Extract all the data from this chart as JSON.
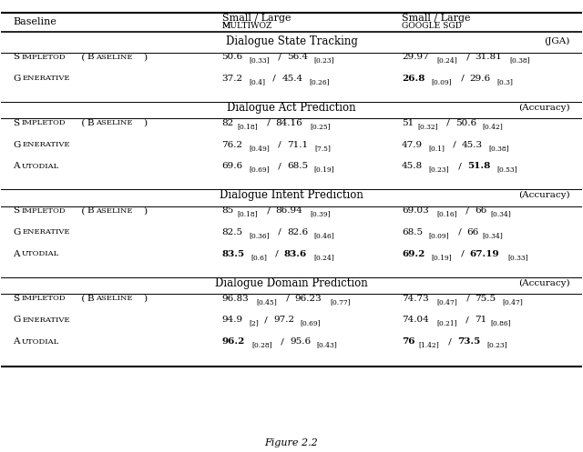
{
  "figsize": [
    6.4,
    4.97
  ],
  "dpi": 100,
  "bg_color": "#ffffff",
  "header": {
    "col0": "Baseline",
    "col1_line1": "Small / Large",
    "col1_line2": "MULTIWOZ",
    "col2_line1": "Small / Large",
    "col2_line2": "GOOGLE SGD"
  },
  "sections": [
    {
      "title": "Dialogue State Tracking",
      "metric": "(JGA)",
      "rows": [
        {
          "model": "S\\small{IMPLETOD} (B\\small{ASELINE})",
          "multiwoz": "50.6[0.33] / 56.4[0.23]",
          "googlesgd": "29.97[0.24] / 31.81[0.38]",
          "bold_multiwoz": [],
          "bold_googlesgd": []
        },
        {
          "model": "G\\small{ENERATIVE}",
          "multiwoz": "37.2[0.4] / 45.4[0.26]",
          "googlesgd": "26.8[0.09] / 29.6[0.3]",
          "bold_multiwoz": [],
          "bold_googlesgd": [
            "26.8"
          ]
        }
      ]
    },
    {
      "title": "Dialogue Act Prediction",
      "metric": "(Accuracy)",
      "rows": [
        {
          "model": "S\\small{IMPLETOD} (B\\small{ASELINE})",
          "multiwoz": "82[0.18] / 84.16[0.25]",
          "googlesgd": "51[0.32] / 50.6[0.42]",
          "bold_multiwoz": [],
          "bold_googlesgd": []
        },
        {
          "model": "G\\small{ENERATIVE}",
          "multiwoz": "76.2[0.49] / 71.1[7.5]",
          "googlesgd": "47.9[0.1] / 45.3[0.38]",
          "bold_multiwoz": [],
          "bold_googlesgd": []
        },
        {
          "model": "A\\small{UTODIAL}",
          "multiwoz": "69.6[0.69] / 68.5[0.19]",
          "googlesgd": "45.8[0.23] / 51.8[0.53]",
          "bold_multiwoz": [],
          "bold_googlesgd": [
            "51.8"
          ]
        }
      ]
    },
    {
      "title": "Dialogue Intent Prediction",
      "metric": "(Accuracy)",
      "rows": [
        {
          "model": "S\\small{IMPLETOD} (B\\small{ASELINE})",
          "multiwoz": "85[0.18] / 86.94[0.39]",
          "googlesgd": "69.03[0.16] / 66[0.34]",
          "bold_multiwoz": [],
          "bold_googlesgd": []
        },
        {
          "model": "G\\small{ENERATIVE}",
          "multiwoz": "82.5[0.36] / 82.6[0.46]",
          "googlesgd": "68.5[0.09] / 66[0.34]",
          "bold_multiwoz": [],
          "bold_googlesgd": []
        },
        {
          "model": "A\\small{UTODIAL}",
          "multiwoz": "83.5[0.6] / 83.6[0.24]",
          "googlesgd": "69.2[0.19] / 67.19[0.33]",
          "bold_multiwoz": [
            "83.5",
            "83.6"
          ],
          "bold_googlesgd": [
            "69.2",
            "67.19"
          ]
        }
      ]
    },
    {
      "title": "Dialogue Domain Prediction",
      "metric": "(Accuracy)",
      "rows": [
        {
          "model": "S\\small{IMPLETOD} (B\\small{ASELINE})",
          "multiwoz": "96.83[0.45] / 96.23[0.77]",
          "googlesgd": "74.73[0.47] / 75.5[0.47]",
          "bold_multiwoz": [],
          "bold_googlesgd": []
        },
        {
          "model": "G\\small{ENERATIVE}",
          "multiwoz": "94.9[2] / 97.2[0.69]",
          "googlesgd": "74.04[0.21] / 71[0.86]",
          "bold_multiwoz": [],
          "bold_googlesgd": []
        },
        {
          "model": "A\\small{UTODIAL}",
          "multiwoz": "96.2[0.28] / 95.6[0.43]",
          "googlesgd": "76[1.42] / 73.5[0.23]",
          "bold_multiwoz": [
            "96.2"
          ],
          "bold_googlesgd": [
            "76",
            "73.5"
          ]
        }
      ]
    }
  ]
}
